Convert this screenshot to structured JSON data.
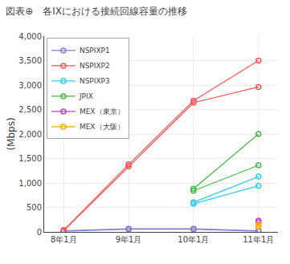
{
  "chart_data": {
    "type": "line",
    "title": "図表⊕　各IXにおける接続回線容量の推移",
    "ylabel": "(Mbps)",
    "categories": [
      "8年1月",
      "9年1月",
      "10年1月",
      "11年1月"
    ],
    "ylim": [
      0,
      4000
    ],
    "yticks": [
      0,
      500,
      {
        "value": 1000,
        "label": "1,000"
      },
      {
        "value": 1500,
        "label": "1,500"
      },
      {
        "value": 2000,
        "label": "2,000"
      },
      {
        "value": 2500,
        "label": "2,500"
      },
      {
        "value": 3000,
        "label": "3,000"
      },
      {
        "value": 3500,
        "label": "3,500"
      },
      {
        "value": 4000,
        "label": "4,000"
      }
    ],
    "grid": true,
    "legend": "upper left",
    "marker": "circle",
    "series": [
      {
        "name": "NSPIXP1",
        "color": "#8080cc",
        "values": [
          15,
          55,
          55,
          15
        ],
        "values2": [
          25,
          65,
          65,
          25
        ]
      },
      {
        "name": "NSPIXP2",
        "color": "#ff5555",
        "values": [
          25,
          1340,
          2640,
          2960
        ],
        "values2": [
          35,
          1380,
          2680,
          3500
        ]
      },
      {
        "name": "NSPIXP3",
        "color": "#33ccee",
        "values": [
          null,
          null,
          575,
          940
        ],
        "values2": [
          null,
          null,
          605,
          1130
        ]
      },
      {
        "name": "JPIX",
        "color": "#44bb44",
        "values": [
          null,
          null,
          840,
          1360
        ],
        "values2": [
          null,
          null,
          880,
          2000
        ]
      },
      {
        "name": "MEX（東京）",
        "color": "#bb44bb",
        "values": [
          null,
          null,
          null,
          195
        ],
        "values2": [
          null,
          null,
          null,
          230
        ]
      },
      {
        "name": "MEX（大阪）",
        "color": "#ffaa00",
        "values": [
          null,
          null,
          null,
          115
        ],
        "values2": [
          null,
          null,
          null,
          155
        ]
      }
    ]
  }
}
